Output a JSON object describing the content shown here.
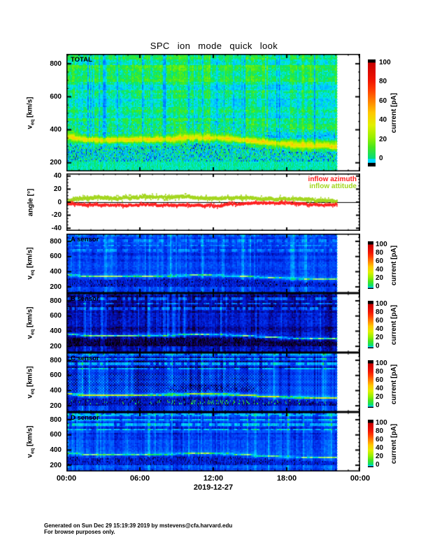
{
  "chart_data": {
    "type": "heatmap",
    "title": "SPC ion mode quick look",
    "date_label": "2019-12-27",
    "time_ticks": [
      "00:00",
      "06:00",
      "12:00",
      "18:00",
      "00:00"
    ],
    "time_range_hours": [
      0,
      24
    ],
    "data_end_hour": 22.1,
    "colorbar": {
      "label": "current [pA]",
      "ticks": [
        0,
        20,
        40,
        60,
        80,
        100
      ],
      "range": [
        0,
        100
      ]
    },
    "velocity_axis": {
      "label_main": "v",
      "label_sub": "eq",
      "label_rest": " [km/s]",
      "ticks": [
        200,
        400,
        600,
        800
      ]
    },
    "proton_band_velocity_km_s": [
      [
        0,
        358
      ],
      [
        1.5,
        342
      ],
      [
        3,
        338
      ],
      [
        5,
        342
      ],
      [
        7,
        343
      ],
      [
        9,
        348
      ],
      [
        10.5,
        356
      ],
      [
        12,
        352
      ],
      [
        13.5,
        348
      ],
      [
        15,
        335
      ],
      [
        16.5,
        322
      ],
      [
        18,
        312
      ],
      [
        19.5,
        306
      ],
      [
        21,
        304
      ],
      [
        22.1,
        302
      ]
    ],
    "spectro_panels": [
      {
        "name": "TOTAL",
        "background_pA": 3,
        "band_peak_pA": 30
      },
      {
        "name": "A sensor",
        "background_pA": -26,
        "band_peak_pA": -3
      },
      {
        "name": "B sensor",
        "background_pA": -37,
        "band_peak_pA": -6
      },
      {
        "name": "C sensor",
        "background_pA": -28,
        "band_peak_pA": 6
      },
      {
        "name": "D sensor",
        "background_pA": -25,
        "band_peak_pA": -4
      }
    ],
    "angle_panel": {
      "ylabel": "angle [°]",
      "yticks": [
        -40,
        -20,
        0,
        20,
        40
      ],
      "series": [
        {
          "name": "inflow azimuth",
          "color": "#ff2020",
          "points": [
            [
              0,
              -0.5
            ],
            [
              1,
              -3
            ],
            [
              3,
              -4
            ],
            [
              5,
              -4.5
            ],
            [
              6,
              -5
            ],
            [
              8,
              -4
            ],
            [
              9.5,
              -5
            ],
            [
              11,
              -4
            ],
            [
              12.5,
              -4
            ],
            [
              14,
              -3
            ],
            [
              15.5,
              -2
            ],
            [
              17,
              -1.5
            ],
            [
              18.5,
              -2
            ],
            [
              20,
              -3
            ],
            [
              21,
              -3
            ],
            [
              22.1,
              -3
            ]
          ]
        },
        {
          "name": "inflow attitude",
          "color": "#a3d61e",
          "points": [
            [
              0,
              2
            ],
            [
              1,
              6
            ],
            [
              2.5,
              8
            ],
            [
              4,
              7
            ],
            [
              5.5,
              8
            ],
            [
              7,
              8
            ],
            [
              8.5,
              7
            ],
            [
              10,
              8
            ],
            [
              11.5,
              6
            ],
            [
              13,
              7
            ],
            [
              14.5,
              6
            ],
            [
              16,
              5
            ],
            [
              17.5,
              4
            ],
            [
              19,
              4
            ],
            [
              20.5,
              3
            ],
            [
              22.1,
              2
            ]
          ]
        }
      ]
    }
  },
  "footer": {
    "line1": "Generated on Sun Dec 29 15:19:39 2019 by mstevens@cfa.harvard.edu",
    "line2": "For browse purposes only."
  }
}
